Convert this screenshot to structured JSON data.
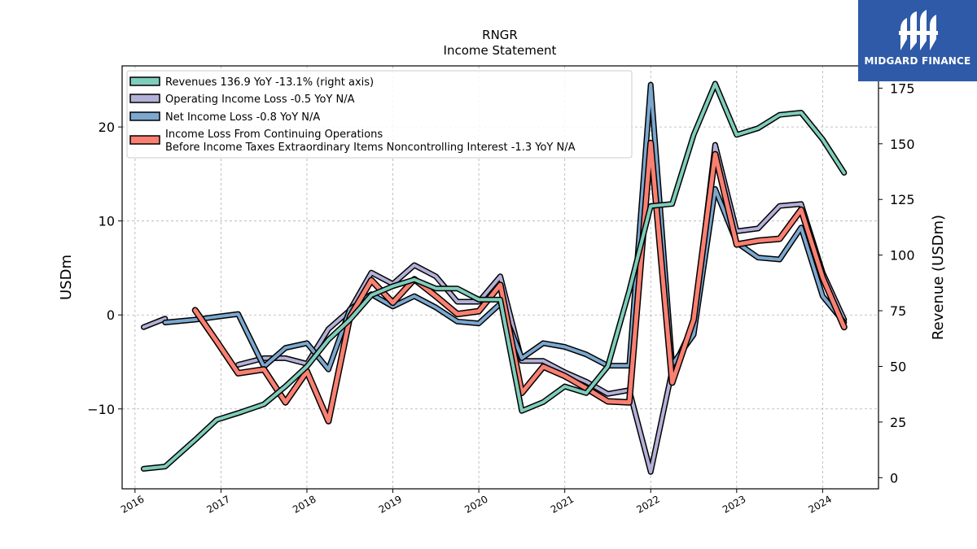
{
  "brand": {
    "name": "MIDGARD FINANCE"
  },
  "colors": {
    "revenues": "#7fcdbb",
    "operating": "#b3b0d8",
    "net": "#7ba8cf",
    "pretax": "#fa8072",
    "brand_bg": "#2f5aa8"
  },
  "chart_data": {
    "type": "line",
    "title": "RNGR",
    "subtitle": "Income Statement",
    "ylabel": "USDm",
    "y2label": "Revenue (USDm)",
    "ylim": [
      -18.5,
      26.5
    ],
    "y2lim": [
      -5,
      185
    ],
    "xlim": [
      2015.85,
      2024.65
    ],
    "yticks": [
      -10,
      0,
      10,
      20
    ],
    "y2ticks": [
      0,
      25,
      50,
      75,
      100,
      125,
      150,
      175
    ],
    "xticks": [
      "2016",
      "2017",
      "2018",
      "2019",
      "2020",
      "2021",
      "2022",
      "2023",
      "2024"
    ],
    "grid": true,
    "legend_position": "top-left",
    "x": [
      2016.1,
      2016.35,
      2016.7,
      2016.95,
      2017.2,
      2017.5,
      2017.75,
      2018.0,
      2018.25,
      2018.5,
      2018.75,
      2019.0,
      2019.25,
      2019.5,
      2019.75,
      2020.0,
      2020.25,
      2020.5,
      2020.75,
      2021.0,
      2021.25,
      2021.5,
      2021.75,
      2022.0,
      2022.25,
      2022.5,
      2022.75,
      2023.0,
      2023.25,
      2023.5,
      2023.75,
      2024.0,
      2024.25
    ],
    "series": [
      {
        "name": "Revenues",
        "legend": "Revenues  136.9 YoY -13.1% (right axis)",
        "axis": "right",
        "values": [
          4,
          5,
          17,
          26,
          29,
          33,
          41,
          50,
          62,
          71,
          82,
          86,
          89,
          85,
          85,
          80,
          80,
          30,
          34,
          41,
          38,
          50,
          84,
          122,
          123,
          154,
          177,
          154,
          157,
          163,
          164,
          152,
          137
        ]
      },
      {
        "name": "Operating Income Loss",
        "legend": "Operating Income Loss  -0.5 YoY N/A",
        "axis": "left",
        "values": [
          -1.3,
          -0.4,
          null,
          null,
          -5.3,
          -4.6,
          -4.6,
          -5.2,
          -1.5,
          0.5,
          4.5,
          3.3,
          5.3,
          4.1,
          1.4,
          1.4,
          4.1,
          -4.9,
          -4.9,
          -6.1,
          -7.1,
          -8.4,
          -8.0,
          -16.7,
          -5.9,
          -1.0,
          18.1,
          8.9,
          9.2,
          11.6,
          11.8,
          4.5,
          -0.5
        ]
      },
      {
        "name": "Net Income Loss",
        "legend": "Net Income Loss  -0.8 YoY N/A",
        "axis": "left",
        "values": [
          null,
          -0.8,
          -0.5,
          -0.2,
          0.1,
          -5.5,
          -3.5,
          -3.0,
          -5.8,
          0.6,
          2.2,
          0.9,
          2.0,
          0.8,
          -0.7,
          -0.9,
          1.2,
          -4.6,
          -3.0,
          -3.4,
          -4.2,
          -5.4,
          -5.4,
          24.5,
          -5.3,
          -2.1,
          13.4,
          7.7,
          6.1,
          5.9,
          9.3,
          2.0,
          -0.8
        ]
      },
      {
        "name": "Income Loss From Continuing Operations Before Income Taxes Extraordinary Items Noncontrolling Interest",
        "legend": "Income Loss From Continuing Operations\nBefore Income Taxes Extraordinary Items Noncontrolling Interest  -1.3 YoY N/A",
        "axis": "left",
        "values": [
          null,
          null,
          0.5,
          -2.8,
          -6.2,
          -5.8,
          -9.3,
          -6.0,
          -11.3,
          -0.2,
          3.7,
          1.3,
          3.8,
          2.0,
          0.1,
          0.4,
          3.2,
          -8.3,
          -5.5,
          -6.5,
          -7.8,
          -9.2,
          -9.3,
          18.3,
          -7.2,
          -0.5,
          17.1,
          7.5,
          7.9,
          8.1,
          11.2,
          4.0,
          -1.3
        ]
      }
    ]
  }
}
